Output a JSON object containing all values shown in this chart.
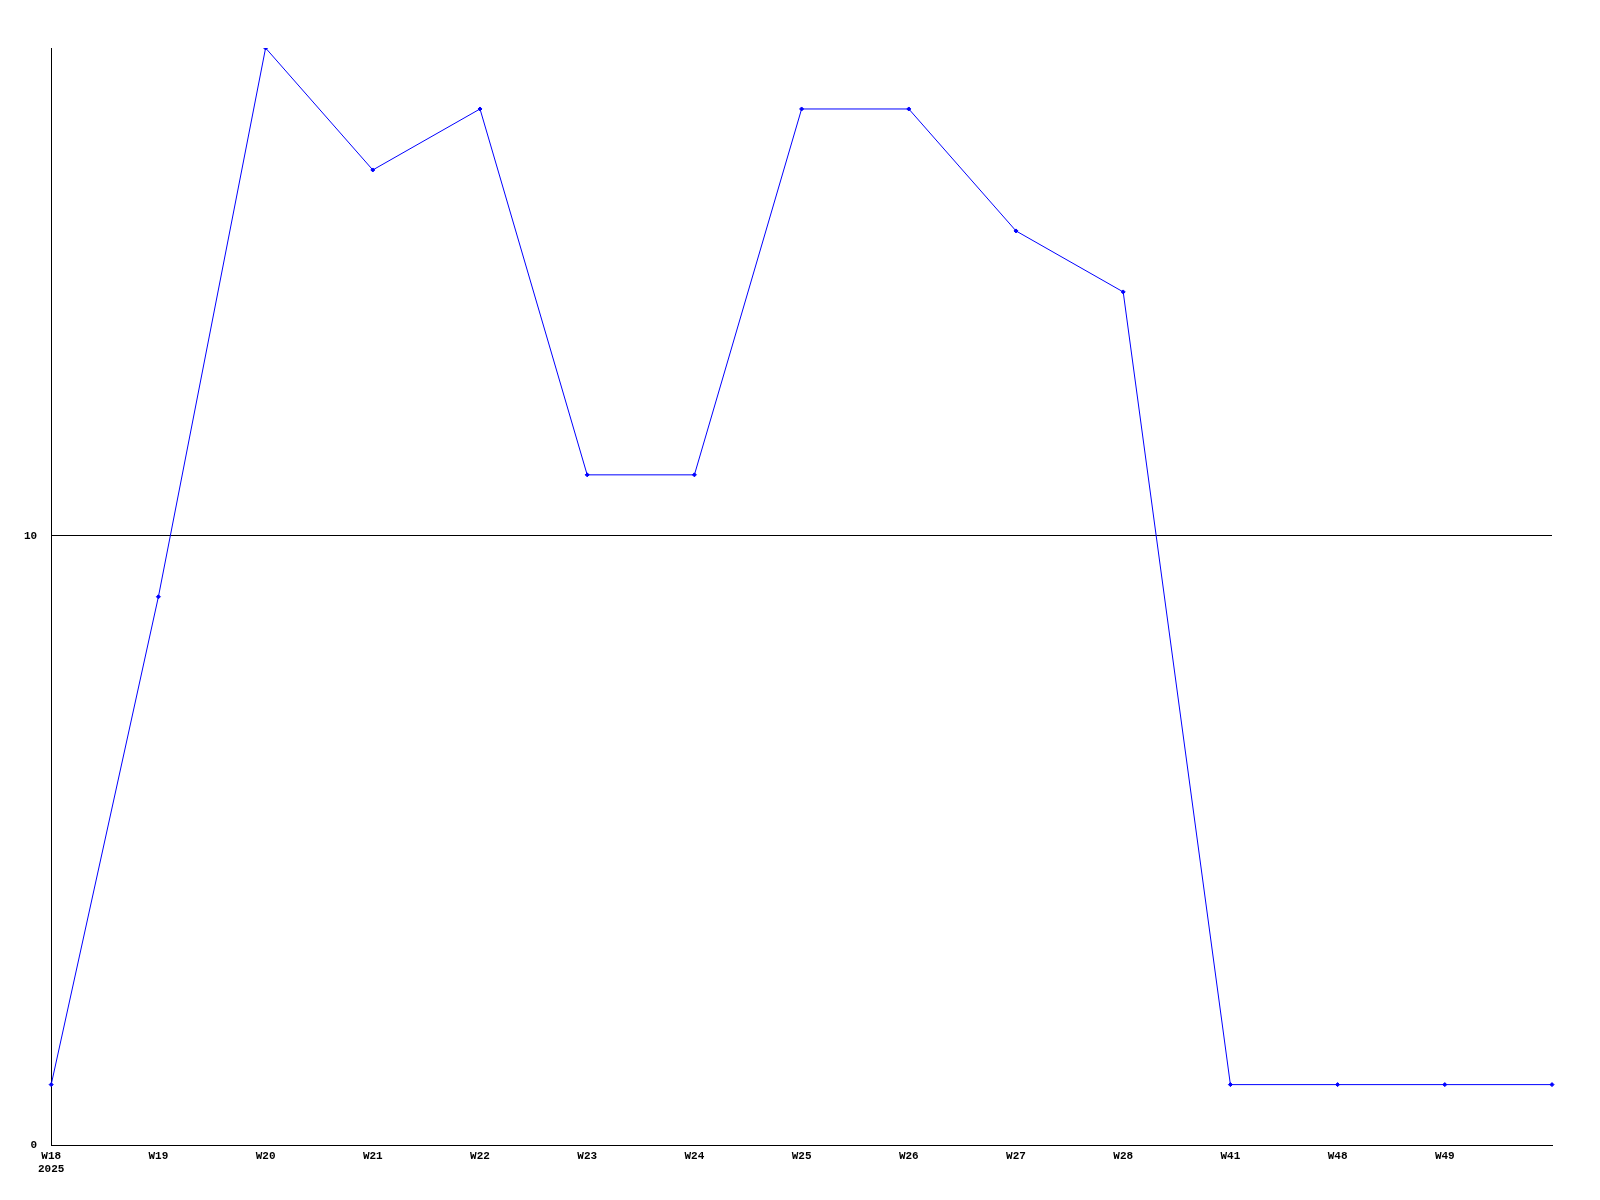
{
  "chart_data": {
    "type": "line",
    "categories": [
      "W18\n2025",
      "W19",
      "W20",
      "W21",
      "W22",
      "W23",
      "W24",
      "W25",
      "W26",
      "W27",
      "W28",
      "W41",
      "W48",
      "W49",
      null
    ],
    "series": [
      {
        "color": "#0000ff",
        "values": [
          1,
          9,
          18,
          16,
          17,
          11,
          11,
          17,
          17,
          15,
          14,
          1,
          1,
          1,
          1
        ]
      }
    ],
    "ylim": [
      0,
      18
    ],
    "yticks": [
      0,
      10
    ],
    "grid": "y",
    "legend": false,
    "marker": "diamond",
    "line_style": "solid"
  }
}
